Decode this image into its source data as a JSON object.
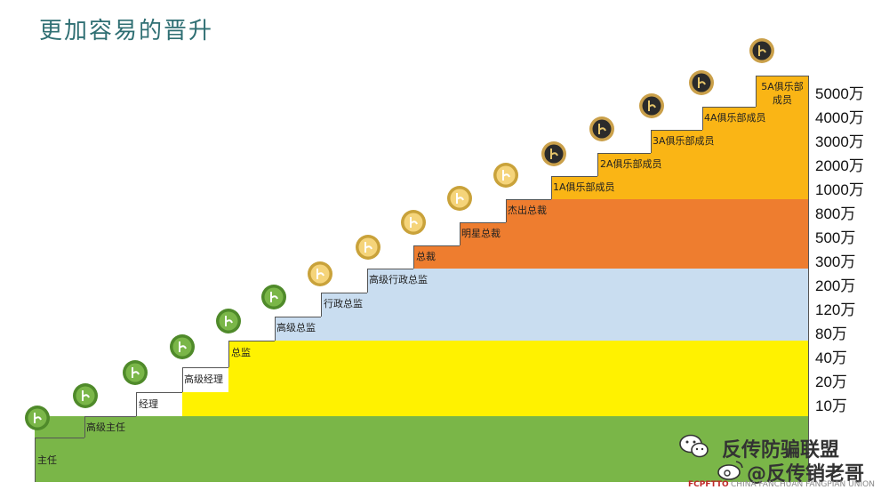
{
  "title": "更加容易的晋升",
  "levels": [
    "主任",
    "高级主任",
    "经理",
    "高级经理",
    "总监",
    "高级总监",
    "行政总监",
    "高级行政总监",
    "总裁",
    "明星总裁",
    "杰出总裁",
    "1A俱乐部成员",
    "2A俱乐部成员",
    "3A俱乐部成员",
    "4A俱乐部成员",
    "5A俱乐部成员"
  ],
  "amounts": [
    "5000万",
    "4000万",
    "3000万",
    "2000万",
    "1000万",
    "800万",
    "500万",
    "300万",
    "200万",
    "120万",
    "80万",
    "40万",
    "20万",
    "10万"
  ],
  "band_colors": {
    "green": "#7ab648",
    "yellow": "#fff200",
    "blue": "#c9ddf0",
    "orange": "#ee7d2f",
    "gold": "#fab515"
  },
  "watermark": {
    "line1": "反传防骗联盟",
    "line2": "@反传销老哥",
    "logo_text": "FCPFTTO",
    "logo_sub": "CHINA FANCHUAN FANGPIAN UNION"
  }
}
